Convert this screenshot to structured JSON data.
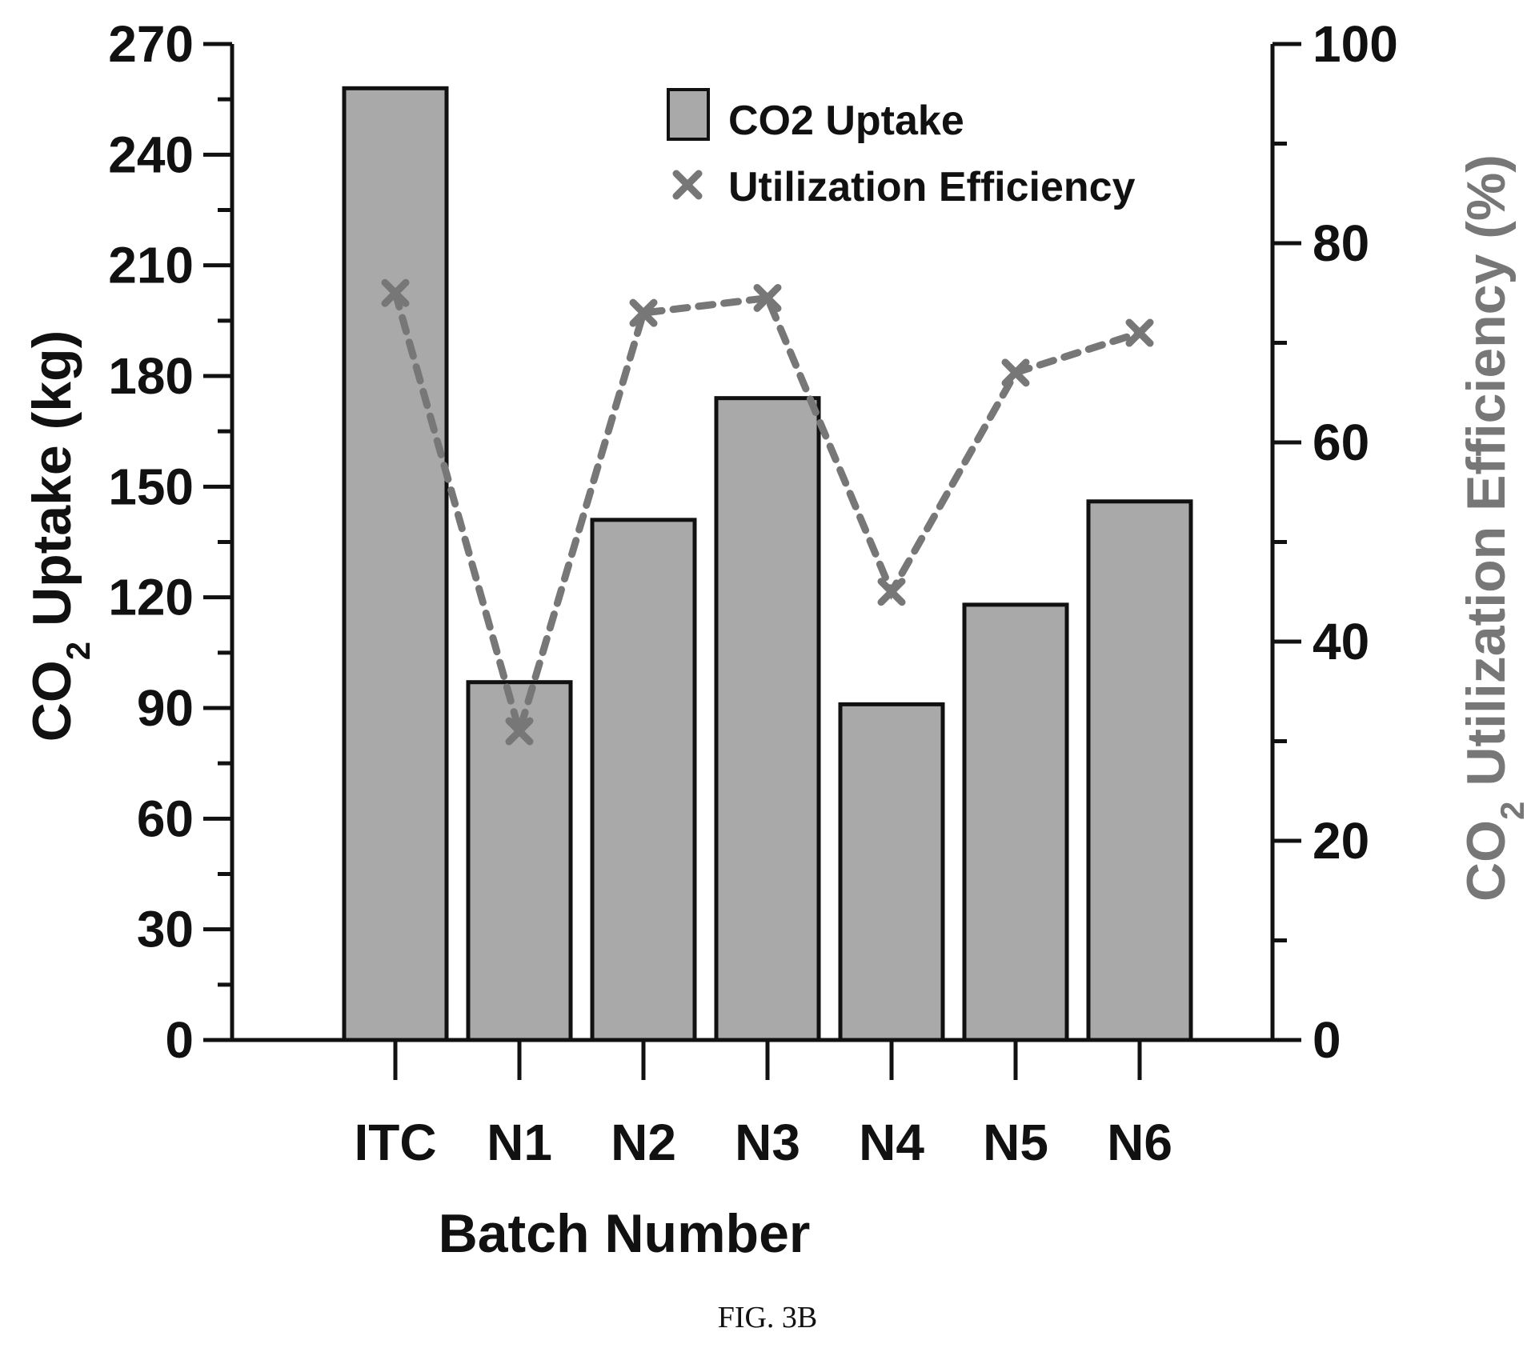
{
  "chart_data": {
    "type": "bar",
    "categories": [
      "ITC",
      "N1",
      "N2",
      "N3",
      "N4",
      "N5",
      "N6"
    ],
    "series": [
      {
        "name": "CO2 Uptake",
        "type": "bar",
        "axis": "left",
        "values": [
          258,
          97,
          141,
          174,
          91,
          118,
          146
        ]
      },
      {
        "name": "Utilization Efficiency",
        "type": "line",
        "axis": "right",
        "values": [
          75,
          31,
          73,
          74.5,
          45,
          67,
          71
        ]
      }
    ],
    "xlabel": "Batch Number",
    "ylabel": {
      "prefix": "CO",
      "sub": "2",
      "suffix": " Uptake (kg)"
    },
    "y2label": {
      "prefix": "CO",
      "sub": "2",
      "suffix": " Utilization Efficiency (%)"
    },
    "ylim": [
      0,
      270
    ],
    "yticks": [
      0,
      30,
      60,
      90,
      120,
      150,
      180,
      210,
      240,
      270
    ],
    "y2lim": [
      0,
      100
    ],
    "y2ticks": [
      0,
      20,
      40,
      60,
      80,
      100
    ],
    "legend_position": "top-right",
    "grid": false,
    "colors": {
      "bar_fill": "#a9a9a9",
      "bar_stroke": "#111111",
      "line": "#777777",
      "axis": "#111111",
      "y2_title": "#777777"
    }
  },
  "caption": "FIG. 3B"
}
